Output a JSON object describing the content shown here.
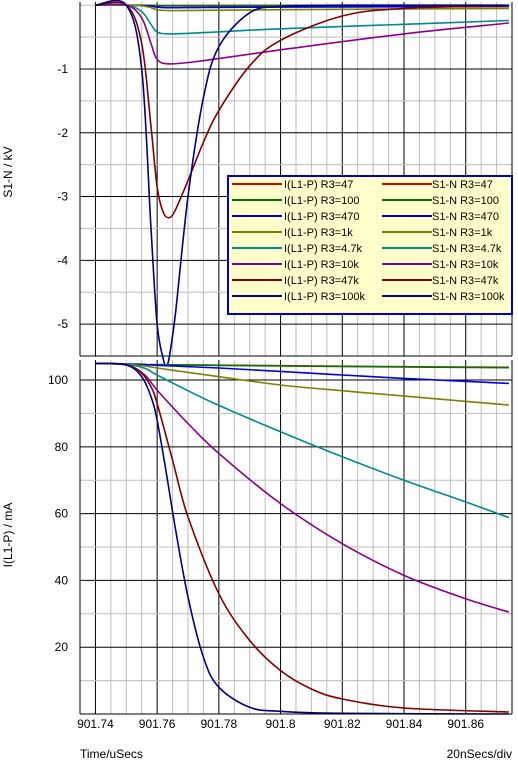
{
  "chart_data": [
    {
      "type": "line",
      "panel": "top",
      "ylabel": "S1-N / kV",
      "xlim": [
        901.735,
        901.875
      ],
      "ylim": [
        -5.5,
        0.05
      ],
      "yticks": [
        -5,
        -4,
        -3,
        -2,
        -1
      ],
      "grid": true,
      "legend_position": "right",
      "legend": [
        {
          "left": "I(L1-P) R3=47",
          "right": "S1-N R3=47",
          "color": "#e00000"
        },
        {
          "left": "I(L1-P) R3=100",
          "right": "S1-N R3=100",
          "color": "#007a00"
        },
        {
          "left": "I(L1-P) R3=470",
          "right": "S1-N R3=470",
          "color": "#0000e0"
        },
        {
          "left": "I(L1-P) R3=1k",
          "right": "S1-N R3=1k",
          "color": "#808000"
        },
        {
          "left": "I(L1-P) R3=4.7k",
          "right": "S1-N R3=4.7k",
          "color": "#008b8b"
        },
        {
          "left": "I(L1-P) R3=10k",
          "right": "S1-N R3=10k",
          "color": "#8b008b"
        },
        {
          "left": "I(L1-P) R3=47k",
          "right": "S1-N R3=47k",
          "color": "#800000"
        },
        {
          "left": "I(L1-P) R3=100k",
          "right": "S1-N R3=100k",
          "color": "#000080"
        }
      ],
      "series": [
        {
          "name": "S1-N R3=47",
          "color": "#e00000",
          "x": [
            901.74,
            901.75,
            901.755,
            901.758,
            901.76,
            901.764,
            901.775,
            901.8,
            901.84,
            901.874
          ],
          "y": [
            0,
            0,
            0,
            -0.002,
            -0.004,
            -0.005,
            -0.004,
            -0.003,
            -0.002,
            -0.002
          ]
        },
        {
          "name": "S1-N R3=100",
          "color": "#007a00",
          "x": [
            901.74,
            901.75,
            901.755,
            901.758,
            901.76,
            901.764,
            901.775,
            901.8,
            901.84,
            901.874
          ],
          "y": [
            0,
            0,
            -0.002,
            -0.005,
            -0.008,
            -0.01,
            -0.009,
            -0.007,
            -0.005,
            -0.004
          ]
        },
        {
          "name": "S1-N R3=470",
          "color": "#0000e0",
          "x": [
            901.74,
            901.75,
            901.755,
            901.758,
            901.76,
            901.764,
            901.775,
            901.8,
            901.84,
            901.874
          ],
          "y": [
            0,
            0,
            -0.005,
            -0.015,
            -0.03,
            -0.04,
            -0.035,
            -0.03,
            -0.025,
            -0.02
          ]
        },
        {
          "name": "S1-N R3=1k",
          "color": "#808000",
          "x": [
            901.74,
            901.75,
            901.755,
            901.758,
            901.76,
            901.764,
            901.775,
            901.8,
            901.84,
            901.874
          ],
          "y": [
            0,
            0,
            -0.01,
            -0.04,
            -0.07,
            -0.085,
            -0.08,
            -0.07,
            -0.06,
            -0.05
          ]
        },
        {
          "name": "S1-N R3=4.7k",
          "color": "#008b8b",
          "x": [
            901.74,
            901.75,
            901.755,
            901.758,
            901.76,
            901.764,
            901.775,
            901.8,
            901.84,
            901.874
          ],
          "y": [
            0,
            0,
            -0.1,
            -0.3,
            -0.42,
            -0.45,
            -0.43,
            -0.37,
            -0.3,
            -0.24
          ]
        },
        {
          "name": "S1-N R3=10k",
          "color": "#8b008b",
          "x": [
            901.74,
            901.75,
            901.755,
            901.758,
            901.76,
            901.764,
            901.775,
            901.8,
            901.84,
            901.874
          ],
          "y": [
            0,
            0,
            -0.2,
            -0.6,
            -0.85,
            -0.92,
            -0.87,
            -0.7,
            -0.45,
            -0.28
          ]
        },
        {
          "name": "S1-N R3=47k",
          "color": "#800000",
          "x": [
            901.74,
            901.75,
            901.755,
            901.758,
            901.76,
            901.762,
            901.764,
            901.766,
            901.77,
            901.775,
            901.78,
            901.79,
            901.8,
            901.82,
            901.84,
            901.874
          ],
          "y": [
            0,
            0,
            -0.6,
            -1.9,
            -2.85,
            -3.25,
            -3.33,
            -3.2,
            -2.75,
            -2.15,
            -1.65,
            -0.95,
            -0.55,
            -0.17,
            -0.05,
            -0.01
          ]
        },
        {
          "name": "S1-N R3=100k",
          "color": "#000080",
          "x": [
            901.74,
            901.75,
            901.755,
            901.758,
            901.76,
            901.762,
            901.763,
            901.764,
            901.766,
            901.77,
            901.775,
            901.78,
            901.79,
            901.8,
            901.82,
            901.874
          ],
          "y": [
            0,
            0,
            -1.0,
            -3.5,
            -5.0,
            -5.55,
            -5.65,
            -5.5,
            -4.8,
            -3.0,
            -1.45,
            -0.65,
            -0.12,
            -0.02,
            0,
            0
          ]
        }
      ]
    },
    {
      "type": "line",
      "panel": "bottom",
      "ylabel": "I(L1-P) / mA",
      "xlabel": "Time/uSecs",
      "xlabel_right": "20nSecs/div",
      "xlim": [
        901.735,
        901.875
      ],
      "ylim": [
        0,
        106
      ],
      "yticks": [
        20,
        40,
        60,
        80,
        100
      ],
      "xticks": [
        901.74,
        901.76,
        901.78,
        901.8,
        901.82,
        901.84,
        901.86
      ],
      "grid": true,
      "series": [
        {
          "name": "I(L1-P) R3=47",
          "color": "#e00000",
          "x": [
            901.74,
            901.75,
            901.756,
            901.76,
            901.8,
            901.84,
            901.874
          ],
          "y": [
            105,
            104.8,
            104.7,
            104.6,
            104.3,
            104.0,
            103.8
          ]
        },
        {
          "name": "I(L1-P) R3=100",
          "color": "#007a00",
          "x": [
            901.74,
            901.75,
            901.756,
            901.76,
            901.8,
            901.84,
            901.874
          ],
          "y": [
            105,
            104.8,
            104.7,
            104.6,
            104.2,
            103.9,
            103.7
          ]
        },
        {
          "name": "I(L1-P) R3=470",
          "color": "#0000e0",
          "x": [
            901.74,
            901.75,
            901.756,
            901.76,
            901.78,
            901.8,
            901.82,
            901.84,
            901.874
          ],
          "y": [
            105,
            104.8,
            104.6,
            104.4,
            103.6,
            102.6,
            101.5,
            100.5,
            99.0
          ]
        },
        {
          "name": "I(L1-P) R3=1k",
          "color": "#808000",
          "x": [
            901.74,
            901.75,
            901.756,
            901.76,
            901.78,
            901.8,
            901.82,
            901.84,
            901.874
          ],
          "y": [
            105,
            104.7,
            104.2,
            103.6,
            101.0,
            98.5,
            96.8,
            95.2,
            92.5
          ]
        },
        {
          "name": "I(L1-P) R3=4.7k",
          "color": "#008b8b",
          "x": [
            901.74,
            901.75,
            901.756,
            901.76,
            901.77,
            901.78,
            901.8,
            901.82,
            901.84,
            901.86,
            901.874
          ],
          "y": [
            105,
            104.7,
            103.5,
            101.5,
            96.8,
            92.4,
            84.5,
            77.0,
            70.0,
            63.5,
            58.8
          ]
        },
        {
          "name": "I(L1-P) R3=10k",
          "color": "#8b008b",
          "x": [
            901.74,
            901.75,
            901.756,
            901.76,
            901.77,
            901.78,
            901.8,
            901.82,
            901.84,
            901.86,
            901.874
          ],
          "y": [
            105,
            104.6,
            101.5,
            97.0,
            87.0,
            78.0,
            63.0,
            51.0,
            41.5,
            34.5,
            30.5
          ]
        },
        {
          "name": "I(L1-P) R3=47k",
          "color": "#800000",
          "x": [
            901.74,
            901.75,
            901.755,
            901.758,
            901.76,
            901.765,
            901.77,
            901.78,
            901.79,
            901.8,
            901.81,
            901.82,
            901.84,
            901.874
          ],
          "y": [
            105,
            104.5,
            102.0,
            98.0,
            93.0,
            76.0,
            59.0,
            36.0,
            22.0,
            13.0,
            7.5,
            4.5,
            1.8,
            0.6
          ]
        },
        {
          "name": "I(L1-P) R3=100k",
          "color": "#000080",
          "x": [
            901.74,
            901.75,
            901.755,
            901.758,
            901.76,
            901.763,
            901.766,
            901.77,
            901.775,
            901.78,
            901.79,
            901.8,
            901.82,
            901.874
          ],
          "y": [
            105,
            104.5,
            101.0,
            95.0,
            88.0,
            72.0,
            55.0,
            35.0,
            17.0,
            8.0,
            2.0,
            0.8,
            0.2,
            0
          ]
        }
      ]
    }
  ]
}
